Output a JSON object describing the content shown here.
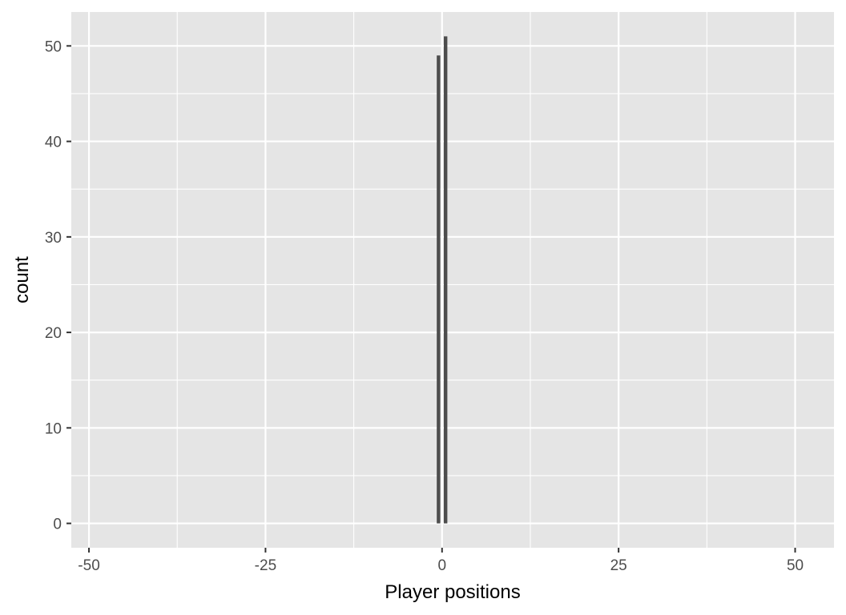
{
  "chart_data": {
    "type": "bar",
    "title": "",
    "xlabel": "Player positions",
    "ylabel": "count",
    "xlim": [
      -52.5,
      55.5
    ],
    "ylim": [
      -2.55,
      53.55
    ],
    "x_ticks": [
      -50,
      -25,
      0,
      25,
      50
    ],
    "x_tick_labels": [
      "-50",
      "-25",
      "0",
      "25",
      "50"
    ],
    "y_ticks": [
      0,
      10,
      20,
      30,
      40,
      50
    ],
    "y_tick_labels": [
      "0",
      "10",
      "20",
      "30",
      "40",
      "50"
    ],
    "grid": true,
    "bin_width": 0.5,
    "bars": [
      {
        "x": -0.5,
        "value": 49
      },
      {
        "x": 0.5,
        "value": 51
      }
    ],
    "colors": {
      "panel": "#e5e5e5",
      "grid": "#ffffff",
      "bar": "#4d4d4d",
      "tick_label": "#4d4d4d",
      "tick": "#333333",
      "axis_title": "#000000"
    }
  }
}
